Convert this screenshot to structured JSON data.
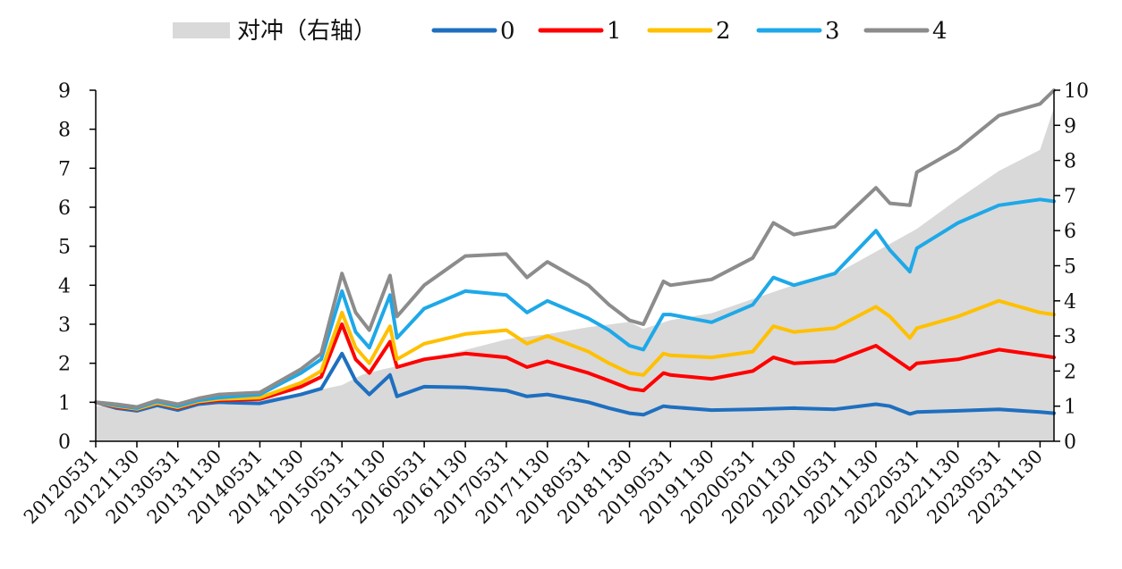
{
  "chart_data": {
    "type": "line",
    "legend": {
      "placement": "top",
      "entries": [
        {
          "label": "对冲（右轴）",
          "kind": "area",
          "color": "#d9d9d9"
        },
        {
          "label": "0",
          "kind": "line",
          "color": "#1f6fbf"
        },
        {
          "label": "1",
          "kind": "line",
          "color": "#ff0000"
        },
        {
          "label": "2",
          "kind": "line",
          "color": "#ffc000"
        },
        {
          "label": "3",
          "kind": "line",
          "color": "#1ea8e8"
        },
        {
          "label": "4",
          "kind": "line",
          "color": "#8c8c8c"
        }
      ]
    },
    "x_tick_labels": [
      "20120531",
      "20121130",
      "20130531",
      "20131130",
      "20140531",
      "20141130",
      "20150531",
      "20151130",
      "20160531",
      "20161130",
      "20170531",
      "20171130",
      "20180531",
      "20181130",
      "20190531",
      "20191130",
      "20200531",
      "20201130",
      "20210531",
      "20211130",
      "20220531",
      "20221130",
      "20230531",
      "20231130"
    ],
    "y_left": {
      "ylim": [
        0,
        9
      ],
      "ticks": [
        "0",
        "1",
        "2",
        "3",
        "4",
        "5",
        "6",
        "7",
        "8",
        "9"
      ]
    },
    "y_right": {
      "ylim": [
        0,
        10
      ],
      "ticks": [
        "0",
        "1",
        "2",
        "3",
        "4",
        "5",
        "6",
        "7",
        "8",
        "9",
        "10"
      ]
    },
    "grid": false,
    "x_start": "20120531",
    "x_end": "20240131",
    "series": [
      {
        "name": "对冲",
        "axis": "right",
        "type": "area",
        "color": "#d9d9d9",
        "points": [
          [
            "20120531",
            1.0
          ],
          [
            "20121130",
            1.02
          ],
          [
            "20130531",
            1.05
          ],
          [
            "20131130",
            1.12
          ],
          [
            "20140531",
            1.2
          ],
          [
            "20141130",
            1.35
          ],
          [
            "20150531",
            1.6
          ],
          [
            "20150831",
            1.9
          ],
          [
            "20151130",
            2.05
          ],
          [
            "20160531",
            2.3
          ],
          [
            "20161130",
            2.6
          ],
          [
            "20170531",
            2.9
          ],
          [
            "20171130",
            3.05
          ],
          [
            "20180531",
            3.25
          ],
          [
            "20181130",
            3.4
          ],
          [
            "20190131",
            3.2
          ],
          [
            "20190531",
            3.45
          ],
          [
            "20191130",
            3.65
          ],
          [
            "20200531",
            4.05
          ],
          [
            "20201130",
            4.45
          ],
          [
            "20210531",
            4.75
          ],
          [
            "20211130",
            5.4
          ],
          [
            "20220531",
            6.05
          ],
          [
            "20221130",
            6.9
          ],
          [
            "20230531",
            7.7
          ],
          [
            "20231130",
            8.3
          ],
          [
            "20240131",
            9.5
          ]
        ]
      },
      {
        "name": "0",
        "axis": "left",
        "color": "#1f6fbf",
        "points": [
          [
            "20120531",
            1.0
          ],
          [
            "20120831",
            0.85
          ],
          [
            "20121130",
            0.78
          ],
          [
            "20130228",
            0.92
          ],
          [
            "20130531",
            0.8
          ],
          [
            "20130831",
            0.95
          ],
          [
            "20131130",
            1.0
          ],
          [
            "20140531",
            0.97
          ],
          [
            "20141130",
            1.2
          ],
          [
            "20150228",
            1.35
          ],
          [
            "20150531",
            2.25
          ],
          [
            "20150731",
            1.55
          ],
          [
            "20150930",
            1.2
          ],
          [
            "20151231",
            1.7
          ],
          [
            "20160131",
            1.15
          ],
          [
            "20160531",
            1.4
          ],
          [
            "20161130",
            1.38
          ],
          [
            "20170531",
            1.3
          ],
          [
            "20170831",
            1.15
          ],
          [
            "20171130",
            1.2
          ],
          [
            "20180531",
            1.0
          ],
          [
            "20180831",
            0.85
          ],
          [
            "20181130",
            0.72
          ],
          [
            "20190131",
            0.68
          ],
          [
            "20190430",
            0.9
          ],
          [
            "20190531",
            0.88
          ],
          [
            "20191130",
            0.8
          ],
          [
            "20200531",
            0.82
          ],
          [
            "20201130",
            0.85
          ],
          [
            "20210531",
            0.82
          ],
          [
            "20211130",
            0.95
          ],
          [
            "20220131",
            0.9
          ],
          [
            "20220430",
            0.7
          ],
          [
            "20220531",
            0.75
          ],
          [
            "20221130",
            0.78
          ],
          [
            "20230531",
            0.82
          ],
          [
            "20231130",
            0.75
          ],
          [
            "20240131",
            0.72
          ]
        ]
      },
      {
        "name": "1",
        "axis": "left",
        "color": "#ff0000",
        "points": [
          [
            "20120531",
            1.0
          ],
          [
            "20120831",
            0.88
          ],
          [
            "20121130",
            0.82
          ],
          [
            "20130228",
            0.97
          ],
          [
            "20130531",
            0.85
          ],
          [
            "20130831",
            1.0
          ],
          [
            "20131130",
            1.05
          ],
          [
            "20140531",
            1.08
          ],
          [
            "20141130",
            1.4
          ],
          [
            "20150228",
            1.65
          ],
          [
            "20150531",
            3.0
          ],
          [
            "20150731",
            2.1
          ],
          [
            "20150930",
            1.75
          ],
          [
            "20151231",
            2.55
          ],
          [
            "20160131",
            1.9
          ],
          [
            "20160531",
            2.1
          ],
          [
            "20161130",
            2.25
          ],
          [
            "20170531",
            2.15
          ],
          [
            "20170831",
            1.9
          ],
          [
            "20171130",
            2.05
          ],
          [
            "20180531",
            1.75
          ],
          [
            "20180831",
            1.55
          ],
          [
            "20181130",
            1.35
          ],
          [
            "20190131",
            1.3
          ],
          [
            "20190430",
            1.75
          ],
          [
            "20190531",
            1.7
          ],
          [
            "20191130",
            1.6
          ],
          [
            "20200531",
            1.8
          ],
          [
            "20200831",
            2.15
          ],
          [
            "20201130",
            2.0
          ],
          [
            "20210531",
            2.05
          ],
          [
            "20211130",
            2.45
          ],
          [
            "20220131",
            2.2
          ],
          [
            "20220430",
            1.85
          ],
          [
            "20220531",
            2.0
          ],
          [
            "20221130",
            2.1
          ],
          [
            "20230531",
            2.35
          ],
          [
            "20231130",
            2.2
          ],
          [
            "20240131",
            2.15
          ]
        ]
      },
      {
        "name": "2",
        "axis": "left",
        "color": "#ffc000",
        "points": [
          [
            "20120531",
            1.0
          ],
          [
            "20120831",
            0.9
          ],
          [
            "20121130",
            0.83
          ],
          [
            "20130228",
            0.98
          ],
          [
            "20130531",
            0.87
          ],
          [
            "20130831",
            1.02
          ],
          [
            "20131130",
            1.08
          ],
          [
            "20140531",
            1.12
          ],
          [
            "20141130",
            1.5
          ],
          [
            "20150228",
            1.8
          ],
          [
            "20150531",
            3.3
          ],
          [
            "20150731",
            2.4
          ],
          [
            "20150930",
            2.0
          ],
          [
            "20151231",
            2.95
          ],
          [
            "20160131",
            2.1
          ],
          [
            "20160531",
            2.5
          ],
          [
            "20161130",
            2.75
          ],
          [
            "20170531",
            2.85
          ],
          [
            "20170831",
            2.5
          ],
          [
            "20171130",
            2.7
          ],
          [
            "20180531",
            2.3
          ],
          [
            "20180831",
            2.0
          ],
          [
            "20181130",
            1.75
          ],
          [
            "20190131",
            1.7
          ],
          [
            "20190430",
            2.25
          ],
          [
            "20190531",
            2.2
          ],
          [
            "20191130",
            2.15
          ],
          [
            "20200531",
            2.3
          ],
          [
            "20200831",
            2.95
          ],
          [
            "20201130",
            2.8
          ],
          [
            "20210531",
            2.9
          ],
          [
            "20211130",
            3.45
          ],
          [
            "20220131",
            3.2
          ],
          [
            "20220430",
            2.65
          ],
          [
            "20220531",
            2.9
          ],
          [
            "20221130",
            3.2
          ],
          [
            "20230531",
            3.6
          ],
          [
            "20231130",
            3.3
          ],
          [
            "20240131",
            3.25
          ]
        ]
      },
      {
        "name": "3",
        "axis": "left",
        "color": "#1ea8e8",
        "points": [
          [
            "20120531",
            1.0
          ],
          [
            "20120831",
            0.92
          ],
          [
            "20121130",
            0.85
          ],
          [
            "20130228",
            1.02
          ],
          [
            "20130531",
            0.9
          ],
          [
            "20130831",
            1.05
          ],
          [
            "20131130",
            1.12
          ],
          [
            "20140531",
            1.2
          ],
          [
            "20141130",
            1.75
          ],
          [
            "20150228",
            2.1
          ],
          [
            "20150531",
            3.85
          ],
          [
            "20150731",
            2.8
          ],
          [
            "20150930",
            2.4
          ],
          [
            "20151231",
            3.75
          ],
          [
            "20160131",
            2.65
          ],
          [
            "20160531",
            3.4
          ],
          [
            "20161130",
            3.85
          ],
          [
            "20170531",
            3.75
          ],
          [
            "20170831",
            3.3
          ],
          [
            "20171130",
            3.6
          ],
          [
            "20180531",
            3.15
          ],
          [
            "20180831",
            2.85
          ],
          [
            "20181130",
            2.45
          ],
          [
            "20190131",
            2.35
          ],
          [
            "20190430",
            3.25
          ],
          [
            "20190531",
            3.25
          ],
          [
            "20191130",
            3.05
          ],
          [
            "20200531",
            3.5
          ],
          [
            "20200831",
            4.2
          ],
          [
            "20201130",
            4.0
          ],
          [
            "20210531",
            4.3
          ],
          [
            "20211130",
            5.4
          ],
          [
            "20220131",
            4.9
          ],
          [
            "20220430",
            4.35
          ],
          [
            "20220531",
            4.95
          ],
          [
            "20221130",
            5.6
          ],
          [
            "20230531",
            6.05
          ],
          [
            "20231130",
            6.2
          ],
          [
            "20240131",
            6.15
          ]
        ]
      },
      {
        "name": "4",
        "axis": "left",
        "color": "#8c8c8c",
        "points": [
          [
            "20120531",
            1.0
          ],
          [
            "20120831",
            0.95
          ],
          [
            "20121130",
            0.88
          ],
          [
            "20130228",
            1.05
          ],
          [
            "20130531",
            0.95
          ],
          [
            "20130831",
            1.1
          ],
          [
            "20131130",
            1.2
          ],
          [
            "20140531",
            1.25
          ],
          [
            "20141130",
            1.85
          ],
          [
            "20150228",
            2.25
          ],
          [
            "20150531",
            4.3
          ],
          [
            "20150731",
            3.3
          ],
          [
            "20150930",
            2.85
          ],
          [
            "20151231",
            4.25
          ],
          [
            "20160131",
            3.2
          ],
          [
            "20160531",
            4.0
          ],
          [
            "20161130",
            4.75
          ],
          [
            "20170531",
            4.8
          ],
          [
            "20170831",
            4.2
          ],
          [
            "20171130",
            4.6
          ],
          [
            "20180531",
            4.0
          ],
          [
            "20180831",
            3.5
          ],
          [
            "20181130",
            3.1
          ],
          [
            "20190131",
            3.0
          ],
          [
            "20190430",
            4.1
          ],
          [
            "20190531",
            4.0
          ],
          [
            "20191130",
            4.15
          ],
          [
            "20200531",
            4.7
          ],
          [
            "20200831",
            5.6
          ],
          [
            "20201130",
            5.3
          ],
          [
            "20210531",
            5.5
          ],
          [
            "20211130",
            6.5
          ],
          [
            "20220131",
            6.1
          ],
          [
            "20220430",
            6.05
          ],
          [
            "20220531",
            6.9
          ],
          [
            "20221130",
            7.5
          ],
          [
            "20230531",
            8.35
          ],
          [
            "20231130",
            8.65
          ],
          [
            "20240131",
            9.0
          ]
        ]
      }
    ]
  }
}
